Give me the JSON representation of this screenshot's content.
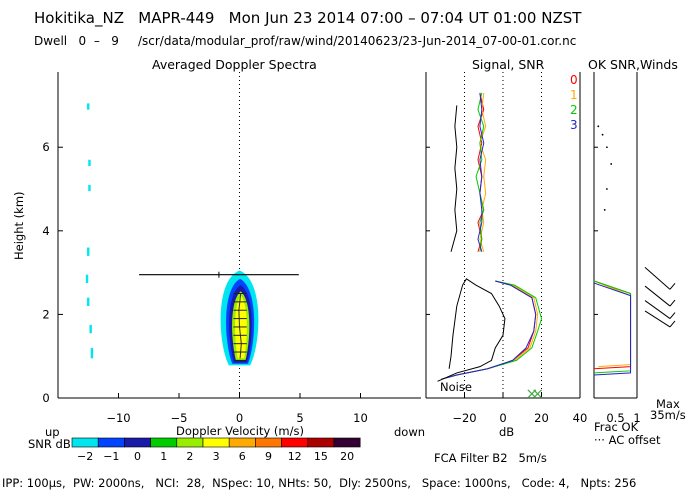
{
  "header": {
    "line1": "Hokitika_NZ   MAPR-449   Mon Jun 23 2014 07:00 – 07:04 UT 01:00 NZST",
    "line2": "Dwell   0  –   9     /scr/data/modular_prof/raw/wind/20140623/23-Jun-2014_07-00-01.cor.nc"
  },
  "footer": "IPP: 100μs,  PW: 2000ns,   NCI:  28,  NSpec: 10, NHts: 50,  Dly: 2500ns,   Space: 1000ns,   Code: 4,   Npts: 256",
  "colors": {
    "bg": "#ffffff",
    "axis": "#000000",
    "snr": [
      "#00e5ee",
      "#0044ff",
      "#1a1aa8",
      "#00cc00",
      "#99ee00",
      "#ffff00",
      "#ffaa00",
      "#ff7700",
      "#ff0000",
      "#aa0000",
      "#330033",
      "#7a0099"
    ],
    "beam": [
      "#ff0000",
      "#ffaa00",
      "#00cc00",
      "#2222cc"
    ]
  },
  "chart_data": [
    {
      "type": "heatmap",
      "title": "Averaged Doppler Spectra",
      "xlabel": "Doppler Velocity (m/s)",
      "ylabel": "Height (km)",
      "xlim": [
        -15,
        15
      ],
      "ylim": [
        0,
        7.8
      ],
      "xticks": [
        -10,
        -5,
        0,
        5,
        10
      ],
      "yticks": [
        0,
        2,
        4,
        6
      ],
      "x_tick_labels": [
        "−10",
        "−5",
        "0",
        "5",
        "10"
      ],
      "y_tick_labels": [
        "0",
        "2",
        "4",
        "6"
      ],
      "left_label": "up",
      "right_label": "down",
      "reference_line_x": 0,
      "horizontal_marker": {
        "height": 2.95,
        "x_from": -8.3,
        "x_to": 4.9,
        "tick_at": -1.7
      },
      "echo_contours": [
        {
          "level": "-2",
          "y_bottom": 0.78,
          "y_top": 3.05,
          "x_center": 0.0,
          "half_width": 1.75
        },
        {
          "level": "-1",
          "y_bottom": 0.82,
          "y_top": 2.85,
          "x_center": 0.05,
          "half_width": 1.3
        },
        {
          "level": "0",
          "y_bottom": 0.85,
          "y_top": 2.7,
          "x_center": 0.08,
          "half_width": 1.05
        },
        {
          "level": "3",
          "y_bottom": 0.9,
          "y_top": 2.55,
          "x_center": 0.1,
          "half_width": 0.8
        },
        {
          "level": "6",
          "y_bottom": 0.95,
          "y_top": 2.45,
          "x_center": 0.12,
          "half_width": 0.55
        }
      ],
      "peak_profile": [
        {
          "height": 0.95,
          "velocity": 0.05
        },
        {
          "height": 1.3,
          "velocity": 0.15
        },
        {
          "height": 1.7,
          "velocity": 0.0
        },
        {
          "height": 2.1,
          "velocity": -0.05
        },
        {
          "height": 2.5,
          "velocity": 0.1
        }
      ],
      "stray_echoes": [
        {
          "x": -12.5,
          "y_from": 6.9,
          "y_to": 7.05
        },
        {
          "x": -12.4,
          "y_from": 5.55,
          "y_to": 5.7
        },
        {
          "x": -12.4,
          "y_from": 4.95,
          "y_to": 5.1
        },
        {
          "x": -12.5,
          "y_from": 3.4,
          "y_to": 3.6
        },
        {
          "x": -12.6,
          "y_from": 2.75,
          "y_to": 2.95
        },
        {
          "x": -12.5,
          "y_from": 2.2,
          "y_to": 2.4
        },
        {
          "x": -12.3,
          "y_from": 1.55,
          "y_to": 1.75
        },
        {
          "x": -12.2,
          "y_from": 0.95,
          "y_to": 1.2
        }
      ]
    },
    {
      "type": "line",
      "title": "Signal, SNR",
      "xlabel": "dB",
      "xlim": [
        -40,
        40
      ],
      "ylim": [
        0,
        7.8
      ],
      "xticks": [
        -20,
        0,
        20,
        40
      ],
      "x_tick_labels": [
        "−20",
        "0",
        "20",
        "40"
      ],
      "dotted_x": [
        -20,
        0,
        20
      ],
      "noise_label": "Noise",
      "series": [
        {
          "name": "0",
          "points": [
            [
              -12,
              7.3
            ],
            [
              -10,
              6.9
            ],
            [
              -13,
              6.5
            ],
            [
              -11,
              6.1
            ],
            [
              -13,
              5.7
            ],
            [
              -11,
              5.3
            ],
            [
              -12,
              4.9
            ],
            [
              -10,
              4.5
            ],
            [
              -13,
              4.2
            ],
            [
              -11,
              3.8
            ],
            [
              -13,
              3.5
            ]
          ]
        },
        {
          "name": "1",
          "points": [
            [
              -10,
              7.3
            ],
            [
              -11,
              6.9
            ],
            [
              -9,
              6.5
            ],
            [
              -12,
              6.1
            ],
            [
              -9,
              5.7
            ],
            [
              -10,
              5.3
            ],
            [
              -9,
              4.9
            ],
            [
              -11,
              4.5
            ],
            [
              -10,
              4.2
            ],
            [
              -12,
              3.8
            ],
            [
              -10,
              3.5
            ]
          ]
        },
        {
          "name": "2",
          "points": [
            [
              -11,
              7.3
            ],
            [
              -13,
              6.9
            ],
            [
              -10,
              6.5
            ],
            [
              -12,
              6.1
            ],
            [
              -11,
              5.7
            ],
            [
              -14,
              5.3
            ],
            [
              -12,
              4.9
            ],
            [
              -10,
              4.5
            ],
            [
              -12,
              4.2
            ],
            [
              -11,
              3.8
            ],
            [
              -12,
              3.5
            ]
          ]
        },
        {
          "name": "3",
          "points": [
            [
              -12,
              7.3
            ],
            [
              -11,
              6.9
            ],
            [
              -12,
              6.5
            ],
            [
              -10,
              6.1
            ],
            [
              -12,
              5.7
            ],
            [
              -11,
              5.3
            ],
            [
              -12,
              4.9
            ],
            [
              -11,
              4.5
            ],
            [
              -11,
              4.2
            ],
            [
              -13,
              3.8
            ],
            [
              -11,
              3.5
            ]
          ]
        },
        {
          "name": "signal",
          "points": [
            [
              -24,
              7.0
            ],
            [
              -25,
              6.5
            ],
            [
              -24,
              6.0
            ],
            [
              -25,
              5.5
            ],
            [
              -24,
              5.0
            ],
            [
              -25,
              4.5
            ],
            [
              -24,
              4.0
            ],
            [
              -27,
              3.5
            ]
          ]
        }
      ],
      "lower_series": [
        {
          "name": "0",
          "points": [
            [
              -32,
              0.45
            ],
            [
              -24,
              0.55
            ],
            [
              -8,
              0.7
            ],
            [
              5,
              0.9
            ],
            [
              13,
              1.2
            ],
            [
              16,
              1.6
            ],
            [
              17,
              2.0
            ],
            [
              15,
              2.4
            ],
            [
              4,
              2.7
            ],
            [
              -4,
              2.8
            ]
          ]
        },
        {
          "name": "1",
          "points": [
            [
              -32,
              0.45
            ],
            [
              -24,
              0.55
            ],
            [
              -8,
              0.7
            ],
            [
              6,
              0.9
            ],
            [
              14,
              1.2
            ],
            [
              17,
              1.6
            ],
            [
              18,
              2.0
            ],
            [
              16,
              2.4
            ],
            [
              5,
              2.7
            ],
            [
              -4,
              2.8
            ]
          ]
        },
        {
          "name": "2",
          "points": [
            [
              -32,
              0.45
            ],
            [
              -24,
              0.55
            ],
            [
              -8,
              0.7
            ],
            [
              7,
              0.9
            ],
            [
              15,
              1.2
            ],
            [
              18,
              1.6
            ],
            [
              20,
              1.9
            ],
            [
              17,
              2.4
            ],
            [
              6,
              2.7
            ],
            [
              -4,
              2.8
            ]
          ]
        },
        {
          "name": "3",
          "points": [
            [
              -32,
              0.45
            ],
            [
              -24,
              0.55
            ],
            [
              -8,
              0.7
            ],
            [
              5,
              0.9
            ],
            [
              12,
              1.2
            ],
            [
              16,
              1.6
            ],
            [
              17,
              2.0
            ],
            [
              15,
              2.4
            ],
            [
              4,
              2.7
            ],
            [
              -4,
              2.8
            ]
          ]
        },
        {
          "name": "signal",
          "points": [
            [
              -34,
              0.4
            ],
            [
              -24,
              0.6
            ],
            [
              -12,
              0.75
            ],
            [
              -6,
              0.9
            ],
            [
              -4,
              1.2
            ],
            [
              0,
              1.5
            ],
            [
              1,
              1.9
            ],
            [
              -2,
              2.2
            ],
            [
              -6,
              2.5
            ],
            [
              -14,
              2.7
            ],
            [
              -19,
              2.85
            ],
            [
              -21,
              2.7
            ],
            [
              -24,
              2.2
            ],
            [
              -26,
              1.5
            ],
            [
              -27,
              1.0
            ],
            [
              -28,
              0.7
            ]
          ]
        }
      ],
      "noise_markers": [
        [
          15,
          0.1
        ],
        [
          18,
          0.1
        ]
      ]
    },
    {
      "type": "line",
      "title": "OK SNR,Winds",
      "legend": [
        "0",
        "1",
        "2",
        "3"
      ],
      "xlim": [
        0,
        1
      ],
      "xticks": [
        0.5,
        1
      ],
      "x_tick_labels": [
        "0.5",
        "1"
      ],
      "frac_label": "Frac OK",
      "offset_label": "··· AC offset",
      "series": [
        {
          "name": "0",
          "points": [
            [
              0,
              2.8
            ],
            [
              0.85,
              2.5
            ],
            [
              0.85,
              0.75
            ],
            [
              0,
              0.7
            ]
          ]
        },
        {
          "name": "1",
          "points": [
            [
              0,
              2.8
            ],
            [
              0.85,
              2.45
            ],
            [
              0.85,
              0.8
            ],
            [
              0.1,
              0.75
            ]
          ]
        },
        {
          "name": "2",
          "points": [
            [
              0,
              2.8
            ],
            [
              0.85,
              2.5
            ],
            [
              0.85,
              0.65
            ],
            [
              0,
              0.6
            ]
          ]
        },
        {
          "name": "3",
          "points": [
            [
              0,
              2.75
            ],
            [
              0.85,
              2.45
            ],
            [
              0.85,
              0.6
            ],
            [
              0,
              0.55
            ]
          ]
        }
      ],
      "ac_offset_points": [
        [
          0.1,
          6.5
        ],
        [
          0.2,
          6.3
        ],
        [
          0.3,
          6.0
        ],
        [
          0.4,
          5.6
        ],
        [
          0.3,
          5.0
        ],
        [
          0.25,
          4.5
        ]
      ],
      "winds_max_label": "Max",
      "winds_max_value": "35m/s",
      "wind_barbs": [
        {
          "height": 2.6,
          "speed_ms": 10,
          "dir_deg": 315
        },
        {
          "height": 2.2,
          "speed_ms": 15,
          "dir_deg": 310
        },
        {
          "height": 1.9,
          "speed_ms": 12,
          "dir_deg": 320
        },
        {
          "height": 1.7,
          "speed_ms": 8,
          "dir_deg": 300
        }
      ]
    }
  ],
  "snr_legend": {
    "label": "SNR dB",
    "values": [
      "−2",
      "−1",
      "0",
      "1",
      "2",
      "3",
      "6",
      "9",
      "12",
      "15",
      "20"
    ]
  },
  "fca_filter": "FCA Filter B2   5m/s"
}
